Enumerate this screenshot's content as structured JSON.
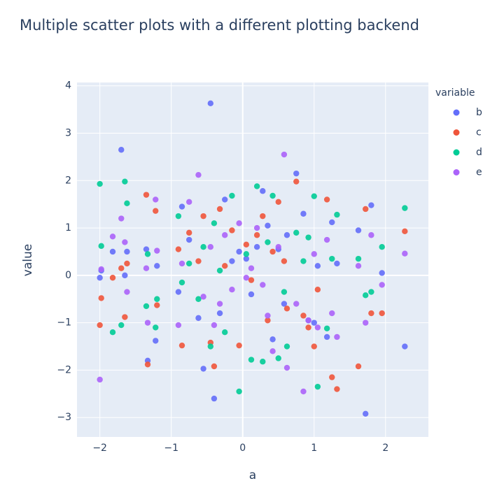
{
  "chart_data": {
    "type": "scatter",
    "title": "Multiple scatter plots with a different plotting backend",
    "x_label": "a",
    "y_label": "value",
    "legend_title": "variable",
    "x": [
      -2.0,
      -1.98,
      -1.82,
      -1.7,
      -1.65,
      -1.62,
      -1.35,
      -1.33,
      -1.22,
      -1.2,
      -0.9,
      -0.85,
      -0.75,
      -0.62,
      -0.55,
      -0.45,
      -0.4,
      -0.32,
      -0.25,
      -0.15,
      -0.05,
      0.05,
      0.12,
      0.2,
      0.28,
      0.35,
      0.42,
      0.5,
      0.58,
      0.62,
      0.75,
      0.85,
      0.92,
      1.0,
      1.05,
      1.18,
      1.25,
      1.32,
      1.62,
      1.72,
      1.8,
      1.95,
      2.27
    ],
    "series": [
      {
        "name": "b",
        "color": "#636efa",
        "values": [
          -0.05,
          0.1,
          0.5,
          2.65,
          0.0,
          0.5,
          0.55,
          -1.8,
          -1.38,
          0.2,
          -0.35,
          1.45,
          0.75,
          -0.9,
          -1.97,
          3.63,
          -2.6,
          -0.8,
          1.6,
          0.3,
          0.5,
          0.35,
          -0.4,
          0.6,
          1.78,
          1.05,
          -1.35,
          0.55,
          -0.6,
          0.85,
          2.15,
          1.3,
          -0.95,
          -1.0,
          0.2,
          -1.3,
          1.12,
          0.25,
          0.95,
          -2.92,
          1.48,
          0.05,
          -1.5
        ]
      },
      {
        "name": "c",
        "color": "#ef553b",
        "values": [
          -1.05,
          -0.48,
          -0.05,
          0.15,
          -0.88,
          0.25,
          1.7,
          -1.88,
          1.36,
          -0.63,
          0.55,
          -1.48,
          0.9,
          0.3,
          1.25,
          -1.42,
          -1.92,
          1.4,
          0.2,
          0.95,
          -1.48,
          0.65,
          -0.1,
          0.85,
          1.25,
          -0.95,
          0.5,
          1.55,
          0.3,
          -0.7,
          1.98,
          -0.85,
          -1.1,
          -1.5,
          -0.3,
          1.6,
          -2.15,
          -2.4,
          -1.92,
          1.4,
          -0.8,
          -0.8,
          0.93
        ]
      },
      {
        "name": "d",
        "color": "#00cc96",
        "values": [
          1.93,
          0.62,
          -1.2,
          -1.05,
          1.98,
          1.52,
          -0.65,
          0.45,
          -1.1,
          -0.5,
          1.25,
          -0.15,
          0.25,
          -0.5,
          0.6,
          -1.5,
          1.1,
          0.1,
          -1.2,
          1.68,
          -2.45,
          0.45,
          -1.78,
          1.88,
          -1.82,
          0.7,
          1.68,
          -1.75,
          -0.35,
          -1.5,
          0.9,
          0.3,
          0.8,
          1.67,
          -2.35,
          -1.12,
          0.35,
          1.28,
          0.35,
          -0.42,
          -0.35,
          0.6,
          1.42
        ]
      },
      {
        "name": "e",
        "color": "#ab63fa",
        "values": [
          -2.2,
          0.13,
          0.82,
          1.2,
          0.7,
          -0.35,
          0.15,
          -1.0,
          1.6,
          0.52,
          -1.05,
          0.25,
          1.55,
          2.12,
          -0.45,
          0.6,
          -1.05,
          -0.6,
          0.85,
          -0.3,
          1.1,
          -0.05,
          0.15,
          1.0,
          -0.2,
          -0.85,
          -1.6,
          0.6,
          2.55,
          -1.95,
          -0.6,
          -2.45,
          -0.95,
          0.45,
          -1.1,
          0.75,
          -0.8,
          -1.3,
          0.2,
          -1.0,
          0.85,
          -0.2,
          0.46
        ]
      }
    ],
    "xlim": [
      -2.32,
      2.6
    ],
    "xticks": [
      {
        "value": -2,
        "label": "−2"
      },
      {
        "value": -1,
        "label": "−1"
      },
      0,
      1,
      2
    ],
    "ylim": [
      -3.41,
      4.07
    ],
    "yticks": [
      {
        "value": -3,
        "label": "−3"
      },
      {
        "value": -2,
        "label": "−2"
      },
      {
        "value": -1,
        "label": "−1"
      },
      0,
      1,
      2,
      3,
      4
    ],
    "grid": true,
    "legend": "right"
  }
}
